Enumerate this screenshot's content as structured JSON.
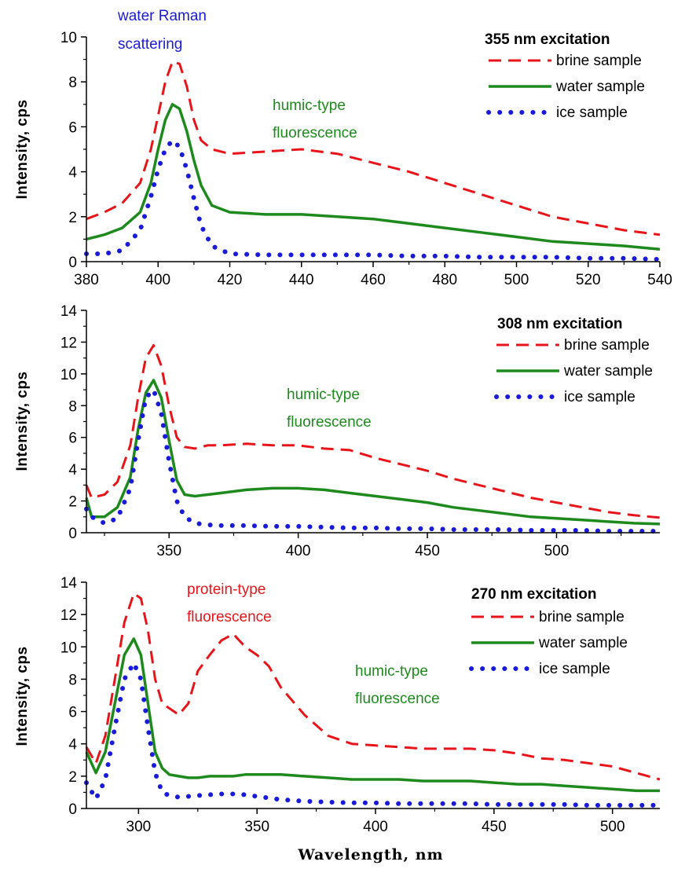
{
  "chart_data": [
    {
      "type": "line",
      "title": "355 nm excitation",
      "xlabel": "",
      "ylabel": "Intensity, cps",
      "xlim": [
        380,
        540
      ],
      "ylim": [
        0,
        10
      ],
      "xticks": [
        380,
        400,
        420,
        440,
        460,
        480,
        500,
        520,
        540
      ],
      "yticks": [
        0,
        2,
        4,
        6,
        8,
        10
      ],
      "grid": false,
      "legend_position": "top-right",
      "annotations": [
        {
          "text": "water Raman",
          "color": "#1a1adb"
        },
        {
          "text": "scattering",
          "color": "#1a1adb"
        },
        {
          "text": "humic-type",
          "color": "#1e8a1e"
        },
        {
          "text": "fluorescence",
          "color": "#1e8a1e"
        }
      ],
      "series": [
        {
          "name": "brine sample",
          "color": "#e8141a",
          "style": "dashed",
          "x": [
            380,
            385,
            390,
            395,
            398,
            400,
            402,
            404,
            406,
            408,
            410,
            412,
            415,
            420,
            430,
            440,
            450,
            460,
            470,
            480,
            490,
            500,
            510,
            520,
            530,
            540
          ],
          "y": [
            1.9,
            2.2,
            2.6,
            3.5,
            5.0,
            6.5,
            8.0,
            8.9,
            8.8,
            7.8,
            6.3,
            5.4,
            5.0,
            4.8,
            4.9,
            5.0,
            4.8,
            4.4,
            4.0,
            3.5,
            3.0,
            2.5,
            2.0,
            1.7,
            1.4,
            1.2
          ]
        },
        {
          "name": "water sample",
          "color": "#1e8a1e",
          "style": "solid",
          "x": [
            380,
            385,
            390,
            395,
            398,
            400,
            402,
            404,
            406,
            408,
            410,
            412,
            415,
            420,
            430,
            440,
            450,
            460,
            470,
            480,
            490,
            500,
            510,
            520,
            530,
            540
          ],
          "y": [
            1.0,
            1.2,
            1.5,
            2.2,
            3.5,
            5.0,
            6.3,
            7.0,
            6.8,
            5.8,
            4.5,
            3.4,
            2.5,
            2.2,
            2.1,
            2.1,
            2.0,
            1.9,
            1.7,
            1.5,
            1.3,
            1.1,
            0.9,
            0.8,
            0.7,
            0.55
          ]
        },
        {
          "name": "ice sample",
          "color": "#1a1adb",
          "style": "dotted",
          "x": [
            380,
            385,
            390,
            395,
            398,
            400,
            402,
            404,
            406,
            408,
            410,
            412,
            415,
            420,
            430,
            440,
            450,
            460,
            470,
            480,
            490,
            500,
            510,
            520,
            530,
            540
          ],
          "y": [
            0.35,
            0.35,
            0.5,
            1.4,
            2.9,
            4.1,
            5.0,
            5.4,
            5.1,
            4.1,
            2.8,
            1.6,
            0.7,
            0.35,
            0.3,
            0.3,
            0.3,
            0.3,
            0.25,
            0.25,
            0.2,
            0.2,
            0.2,
            0.15,
            0.15,
            0.1
          ]
        }
      ]
    },
    {
      "type": "line",
      "title": "308 nm excitation",
      "xlabel": "",
      "ylabel": "Intensity, cps",
      "xlim": [
        318,
        540
      ],
      "ylim": [
        0,
        14
      ],
      "xticks": [
        350,
        400,
        450,
        500
      ],
      "yticks": [
        0,
        2,
        4,
        6,
        8,
        10,
        12,
        14
      ],
      "grid": false,
      "legend_position": "top-right",
      "annotations": [
        {
          "text": "humic-type",
          "color": "#1e8a1e"
        },
        {
          "text": "fluorescence",
          "color": "#1e8a1e"
        }
      ],
      "series": [
        {
          "name": "brine sample",
          "color": "#e8141a",
          "style": "dashed",
          "x": [
            318,
            320,
            325,
            330,
            335,
            338,
            341,
            344,
            347,
            350,
            353,
            356,
            360,
            365,
            370,
            380,
            390,
            400,
            410,
            420,
            430,
            440,
            450,
            460,
            470,
            480,
            490,
            500,
            510,
            520,
            530,
            540
          ],
          "y": [
            3.0,
            2.2,
            2.4,
            3.2,
            5.5,
            8.5,
            11.0,
            11.8,
            10.5,
            8.0,
            6.0,
            5.4,
            5.3,
            5.5,
            5.5,
            5.6,
            5.5,
            5.5,
            5.3,
            5.2,
            4.7,
            4.3,
            3.9,
            3.4,
            3.0,
            2.6,
            2.2,
            1.9,
            1.6,
            1.3,
            1.1,
            0.95
          ]
        },
        {
          "name": "water sample",
          "color": "#1e8a1e",
          "style": "solid",
          "x": [
            318,
            320,
            325,
            330,
            335,
            338,
            341,
            344,
            347,
            350,
            353,
            356,
            360,
            365,
            370,
            380,
            390,
            400,
            410,
            420,
            430,
            440,
            450,
            460,
            470,
            480,
            490,
            500,
            510,
            520,
            530,
            540
          ],
          "y": [
            2.2,
            1.0,
            1.0,
            1.6,
            3.5,
            6.5,
            8.8,
            9.6,
            8.5,
            5.8,
            3.3,
            2.4,
            2.3,
            2.4,
            2.5,
            2.7,
            2.8,
            2.8,
            2.7,
            2.5,
            2.3,
            2.1,
            1.9,
            1.6,
            1.4,
            1.2,
            1.0,
            0.9,
            0.8,
            0.7,
            0.6,
            0.55
          ]
        },
        {
          "name": "ice sample",
          "color": "#1a1adb",
          "style": "dotted",
          "x": [
            318,
            320,
            325,
            330,
            335,
            338,
            341,
            344,
            347,
            350,
            353,
            356,
            360,
            365,
            370,
            380,
            390,
            400,
            410,
            420,
            430,
            440,
            450,
            460,
            470,
            480,
            490,
            500,
            510,
            520,
            530,
            540
          ],
          "y": [
            1.5,
            1.0,
            0.6,
            0.9,
            2.8,
            5.8,
            8.5,
            9.0,
            7.5,
            4.5,
            2.0,
            1.0,
            0.6,
            0.5,
            0.45,
            0.45,
            0.4,
            0.4,
            0.35,
            0.3,
            0.3,
            0.25,
            0.25,
            0.2,
            0.2,
            0.2,
            0.15,
            0.15,
            0.15,
            0.1,
            0.1,
            0.1
          ]
        }
      ]
    },
    {
      "type": "line",
      "title": "270 nm excitation",
      "xlabel": "Wavelength, nm",
      "ylabel": "Intensity, cps",
      "xlim": [
        278,
        520
      ],
      "ylim": [
        0,
        14
      ],
      "xticks": [
        300,
        350,
        400,
        450,
        500
      ],
      "yticks": [
        0,
        2,
        4,
        6,
        8,
        10,
        12,
        14
      ],
      "grid": false,
      "legend_position": "top-right",
      "annotations": [
        {
          "text": "protein-type",
          "color": "#e8141a"
        },
        {
          "text": "fluorescence",
          "color": "#e8141a"
        },
        {
          "text": "humic-type",
          "color": "#1e8a1e"
        },
        {
          "text": "fluorescence",
          "color": "#1e8a1e"
        }
      ],
      "series": [
        {
          "name": "brine sample",
          "color": "#e8141a",
          "style": "dashed",
          "x": [
            278,
            282,
            286,
            290,
            294,
            298,
            301,
            304,
            307,
            310,
            313,
            317,
            321,
            325,
            330,
            335,
            340,
            345,
            350,
            355,
            360,
            370,
            380,
            390,
            400,
            410,
            420,
            430,
            440,
            450,
            460,
            470,
            480,
            490,
            500,
            510,
            520
          ],
          "y": [
            3.8,
            2.8,
            4.5,
            8.0,
            11.5,
            13.3,
            13.0,
            11.0,
            8.0,
            6.5,
            6.2,
            5.8,
            6.5,
            8.5,
            9.5,
            10.4,
            10.8,
            10.0,
            9.5,
            8.8,
            7.5,
            5.8,
            4.5,
            4.0,
            3.9,
            3.8,
            3.7,
            3.7,
            3.7,
            3.6,
            3.4,
            3.1,
            3.0,
            2.8,
            2.6,
            2.2,
            1.8
          ]
        },
        {
          "name": "water sample",
          "color": "#1e8a1e",
          "style": "solid",
          "x": [
            278,
            282,
            286,
            290,
            294,
            298,
            301,
            304,
            307,
            310,
            313,
            317,
            321,
            325,
            330,
            335,
            340,
            345,
            350,
            355,
            360,
            370,
            380,
            390,
            400,
            410,
            420,
            430,
            440,
            450,
            460,
            470,
            480,
            490,
            500,
            510,
            520
          ],
          "y": [
            3.5,
            2.2,
            3.5,
            6.5,
            9.5,
            10.5,
            9.5,
            6.5,
            3.5,
            2.5,
            2.1,
            2.0,
            1.9,
            1.9,
            2.0,
            2.0,
            2.0,
            2.1,
            2.1,
            2.1,
            2.1,
            2.0,
            1.9,
            1.8,
            1.8,
            1.8,
            1.7,
            1.7,
            1.7,
            1.6,
            1.5,
            1.5,
            1.4,
            1.3,
            1.2,
            1.1,
            1.1
          ]
        },
        {
          "name": "ice sample",
          "color": "#1a1adb",
          "style": "dotted",
          "x": [
            278,
            282,
            286,
            290,
            294,
            298,
            301,
            304,
            307,
            310,
            313,
            317,
            321,
            325,
            330,
            335,
            340,
            345,
            350,
            355,
            360,
            370,
            380,
            390,
            400,
            410,
            420,
            430,
            440,
            450,
            460,
            470,
            480,
            490,
            500,
            510,
            520
          ],
          "y": [
            1.6,
            0.6,
            1.8,
            5.0,
            8.0,
            9.0,
            8.0,
            5.0,
            2.2,
            1.0,
            0.8,
            0.7,
            0.75,
            0.8,
            0.85,
            0.9,
            0.9,
            0.85,
            0.75,
            0.65,
            0.55,
            0.45,
            0.4,
            0.35,
            0.35,
            0.3,
            0.3,
            0.3,
            0.3,
            0.25,
            0.25,
            0.25,
            0.25,
            0.2,
            0.2,
            0.2,
            0.2
          ]
        }
      ]
    }
  ]
}
